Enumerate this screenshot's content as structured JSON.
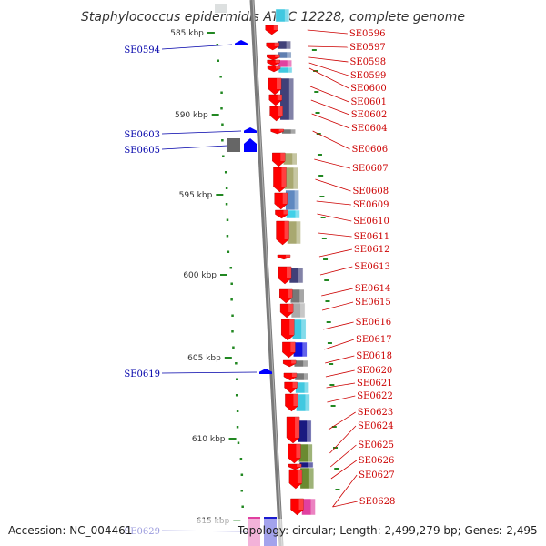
{
  "title": "Staphylococcus epidermidis ATCC 12228, complete genome",
  "footer": {
    "accession": "Accession: NC_004461",
    "topology": "Topology: circular; Length: 2,499,279 bp; Genes: 2,495"
  },
  "colors": {
    "reverse_genes": "#ff0000",
    "forward_genes": "#0000ff",
    "reverse_labels": "#cc0000",
    "forward_labels": "#0000aa",
    "backbone": "#888888",
    "ticks": "#228822"
  },
  "kbp_ticks": [
    {
      "label": "585 kbp",
      "value": 585
    },
    {
      "label": "590 kbp",
      "value": 590
    },
    {
      "label": "595 kbp",
      "value": 595
    },
    {
      "label": "600 kbp",
      "value": 600
    },
    {
      "label": "605 kbp",
      "value": 605
    },
    {
      "label": "610 kbp",
      "value": 610
    },
    {
      "label": "615 kbp",
      "value": 615
    }
  ],
  "forward_genes": [
    "SE0594",
    "SE0603",
    "SE0605",
    "SE0619",
    "SE0629"
  ],
  "reverse_genes": [
    "SE0596",
    "SE0597",
    "SE0598",
    "SE0599",
    "SE0600",
    "SE0601",
    "SE0602",
    "SE0604",
    "SE0606",
    "SE0607",
    "SE0608",
    "SE0609",
    "SE0610",
    "SE0611",
    "SE0612",
    "SE0613",
    "SE0614",
    "SE0615",
    "SE0616",
    "SE0617",
    "SE0618",
    "SE0620",
    "SE0621",
    "SE0622",
    "SE0623",
    "SE0624",
    "SE0625",
    "SE0626",
    "SE0627",
    "SE0628"
  ]
}
